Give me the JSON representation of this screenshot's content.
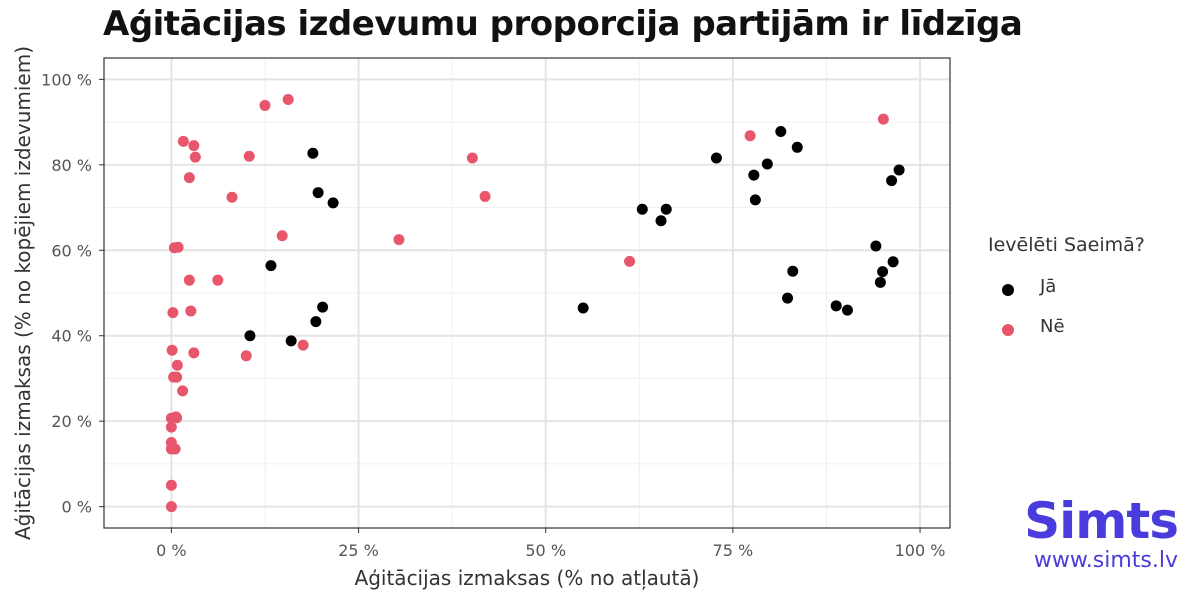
{
  "chart_data": {
    "type": "scatter",
    "title": "Aģitācijas izdevumu proporcija partijām ir līdzīga",
    "xlabel": "Aģitācijas izmaksas (% no atļautā)",
    "ylabel": "Aģitācijas izmaksas (% no kopējiem izdevumiem)",
    "xlim": [
      -9,
      104
    ],
    "ylim": [
      -5,
      105
    ],
    "x_ticks": [
      0,
      25,
      50,
      75,
      100
    ],
    "x_tick_labels": [
      "0 %",
      "25 %",
      "50 %",
      "75 %",
      "100 %"
    ],
    "y_ticks": [
      0,
      20,
      40,
      60,
      80,
      100
    ],
    "y_tick_labels": [
      "0 %",
      "20 %",
      "40 %",
      "60 %",
      "80 %",
      "100 %"
    ],
    "grid": true,
    "legend": {
      "title": "Ievēlēti Saeimā?",
      "placement": "right"
    },
    "series": [
      {
        "name": "Jā",
        "color": "#000000",
        "points": [
          [
            10.5,
            40
          ],
          [
            13.3,
            56.4
          ],
          [
            16.0,
            38.8
          ],
          [
            18.9,
            82.7
          ],
          [
            19.3,
            43.3
          ],
          [
            19.6,
            73.5
          ],
          [
            20.2,
            46.7
          ],
          [
            21.6,
            71.1
          ],
          [
            55.0,
            46.5
          ],
          [
            62.9,
            69.6
          ],
          [
            65.4,
            66.9
          ],
          [
            66.1,
            69.6
          ],
          [
            72.8,
            81.6
          ],
          [
            77.8,
            77.6
          ],
          [
            78.0,
            71.8
          ],
          [
            79.6,
            80.2
          ],
          [
            81.4,
            87.8
          ],
          [
            82.3,
            48.8
          ],
          [
            83.0,
            55.1
          ],
          [
            83.6,
            84.1
          ],
          [
            88.8,
            47.0
          ],
          [
            90.3,
            46.0
          ],
          [
            94.1,
            61.0
          ],
          [
            94.7,
            52.5
          ],
          [
            95.0,
            55.0
          ],
          [
            96.2,
            76.3
          ],
          [
            96.4,
            57.3
          ],
          [
            97.2,
            78.8
          ]
        ]
      },
      {
        "name": "Nē",
        "color": "#e8566c",
        "points": [
          [
            0.0,
            0.0
          ],
          [
            0.0,
            5.0
          ],
          [
            0.0,
            15.0
          ],
          [
            0.0,
            13.5
          ],
          [
            0.0,
            18.6
          ],
          [
            0.0,
            20.7
          ],
          [
            0.5,
            13.5
          ],
          [
            0.7,
            20.8
          ],
          [
            0.6,
            21.0
          ],
          [
            0.3,
            30.3
          ],
          [
            0.7,
            30.3
          ],
          [
            0.8,
            33.1
          ],
          [
            0.1,
            36.6
          ],
          [
            0.2,
            45.4
          ],
          [
            0.4,
            60.6
          ],
          [
            0.9,
            60.7
          ],
          [
            1.5,
            27.1
          ],
          [
            1.6,
            85.5
          ],
          [
            2.4,
            77.0
          ],
          [
            2.4,
            53.0
          ],
          [
            2.6,
            45.8
          ],
          [
            3.0,
            36.0
          ],
          [
            3.0,
            84.5
          ],
          [
            3.2,
            81.8
          ],
          [
            6.2,
            53.0
          ],
          [
            8.1,
            72.4
          ],
          [
            10.0,
            35.3
          ],
          [
            10.4,
            82.0
          ],
          [
            12.5,
            93.9
          ],
          [
            14.8,
            63.4
          ],
          [
            15.6,
            95.3
          ],
          [
            17.6,
            37.8
          ],
          [
            30.4,
            62.5
          ],
          [
            40.2,
            81.6
          ],
          [
            41.9,
            72.6
          ],
          [
            61.2,
            57.4
          ],
          [
            77.3,
            86.8
          ],
          [
            95.1,
            90.7
          ]
        ]
      }
    ]
  },
  "brand": {
    "name": "Simts",
    "url": "www.simts.lv",
    "color": "#4a3cdc"
  }
}
